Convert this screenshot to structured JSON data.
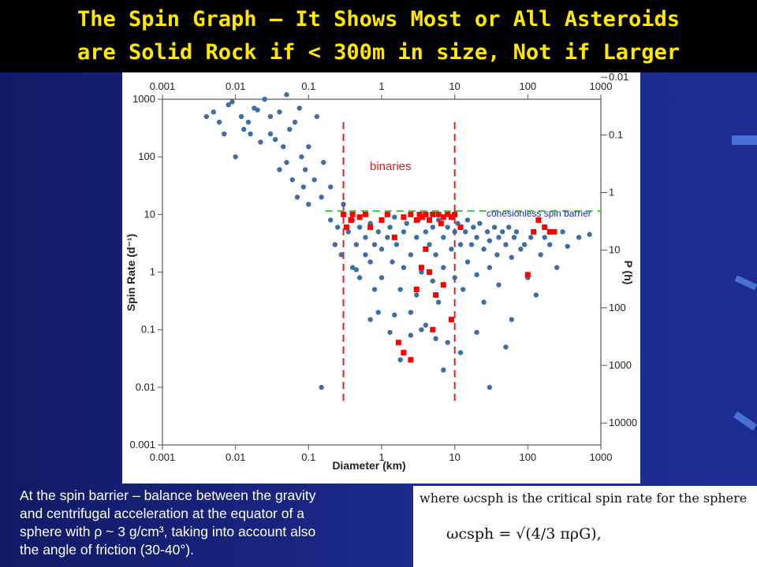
{
  "slide": {
    "title": "The Spin Graph – It Shows Most or All Asteroids\nare Solid Rock if < 300m in size, Not if Larger",
    "text_lines": [
      "At the spin barrier – balance between the gravity",
      "and centrifugal acceleration at the equator of a",
      "sphere with ρ ~ 3 g/cm³, taking into account also",
      "the angle of friction (30-40°)."
    ],
    "formula": {
      "line1": "where ωcsph is the critical spin rate for the sphere",
      "equation": "ωcsph = √(4/3 πρG),"
    },
    "colors": {
      "background": "#1b2a8c",
      "title": "#ffe800",
      "points": "#3d6fa3",
      "binaries": "#ff0000",
      "barrier_line": "#33cc33",
      "size_markers": "#dd2222"
    }
  },
  "chart_data": {
    "type": "scatter",
    "xlabel": "Diameter (km)",
    "ylabel": "Spin Rate (d⁻¹)",
    "ylabel_right": "P (h)",
    "xscale": "log",
    "yscale": "log",
    "xlim": [
      0.001,
      1000
    ],
    "ylim": [
      0.001,
      1000
    ],
    "x_ticks": [
      "0.001",
      "0.01",
      "0.1",
      "1",
      "10",
      "100",
      "1000"
    ],
    "y_ticks": [
      "0.001",
      "0.01",
      "0.1",
      "1",
      "10",
      "100",
      "1000"
    ],
    "right_ticks": [
      "0.01",
      "0.1",
      "1",
      "10",
      "100",
      "1000",
      "10000"
    ],
    "annotations": {
      "binaries_label": "binaries",
      "spin_barrier_label": "cohesionless spin barrier",
      "spin_barrier_rate": 11.5,
      "vertical_markers_km": [
        0.3,
        10
      ]
    },
    "series": [
      {
        "name": "asteroids",
        "points": [
          [
            0.004,
            500
          ],
          [
            0.005,
            600
          ],
          [
            0.006,
            400
          ],
          [
            0.007,
            250
          ],
          [
            0.008,
            800
          ],
          [
            0.009,
            900
          ],
          [
            0.01,
            100
          ],
          [
            0.012,
            500
          ],
          [
            0.013,
            300
          ],
          [
            0.015,
            400
          ],
          [
            0.016,
            250
          ],
          [
            0.018,
            700
          ],
          [
            0.02,
            650
          ],
          [
            0.022,
            180
          ],
          [
            0.025,
            1000
          ],
          [
            0.025,
            1000
          ],
          [
            0.03,
            250
          ],
          [
            0.03,
            500
          ],
          [
            0.035,
            200
          ],
          [
            0.04,
            600
          ],
          [
            0.04,
            60
          ],
          [
            0.045,
            150
          ],
          [
            0.05,
            1200
          ],
          [
            0.05,
            80
          ],
          [
            0.055,
            300
          ],
          [
            0.06,
            40
          ],
          [
            0.065,
            400
          ],
          [
            0.07,
            20
          ],
          [
            0.075,
            700
          ],
          [
            0.08,
            100
          ],
          [
            0.085,
            30
          ],
          [
            0.09,
            60
          ],
          [
            0.1,
            15
          ],
          [
            0.1,
            150
          ],
          [
            0.12,
            40
          ],
          [
            0.13,
            500
          ],
          [
            0.15,
            20
          ],
          [
            0.16,
            80
          ],
          [
            0.2,
            8
          ],
          [
            0.2,
            30
          ],
          [
            0.23,
            3
          ],
          [
            0.25,
            6
          ],
          [
            0.28,
            2
          ],
          [
            0.3,
            15
          ],
          [
            0.35,
            5
          ],
          [
            0.4,
            8
          ],
          [
            0.4,
            1.2
          ],
          [
            0.45,
            3
          ],
          [
            0.5,
            6
          ],
          [
            0.5,
            0.8
          ],
          [
            0.6,
            4
          ],
          [
            0.6,
            2
          ],
          [
            0.7,
            7
          ],
          [
            0.7,
            1.5
          ],
          [
            0.8,
            3
          ],
          [
            0.8,
            0.5
          ],
          [
            0.9,
            5
          ],
          [
            1,
            8
          ],
          [
            1,
            2.5
          ],
          [
            1,
            0.8
          ],
          [
            1.2,
            4
          ],
          [
            1.3,
            6
          ],
          [
            1.4,
            1.5
          ],
          [
            1.5,
            9
          ],
          [
            1.6,
            3
          ],
          [
            1.8,
            0.5
          ],
          [
            2,
            5
          ],
          [
            2,
            1.2
          ],
          [
            2.2,
            7
          ],
          [
            2.5,
            2
          ],
          [
            2.5,
            0.2
          ],
          [
            3,
            4
          ],
          [
            3,
            0.4
          ],
          [
            3.2,
            8
          ],
          [
            3.5,
            1
          ],
          [
            4,
            5
          ],
          [
            4,
            0.12
          ],
          [
            4.5,
            3
          ],
          [
            5,
            6
          ],
          [
            5,
            0.7
          ],
          [
            5.5,
            2
          ],
          [
            6,
            8
          ],
          [
            6,
            0.3
          ],
          [
            7,
            4
          ],
          [
            7,
            1.2
          ],
          [
            8,
            6
          ],
          [
            8,
            0.06
          ],
          [
            9,
            2.5
          ],
          [
            10,
            5
          ],
          [
            10,
            0.8
          ],
          [
            11,
            7
          ],
          [
            12,
            3
          ],
          [
            13,
            0.5
          ],
          [
            14,
            5
          ],
          [
            15,
            8
          ],
          [
            15,
            1.5
          ],
          [
            17,
            3
          ],
          [
            18,
            6
          ],
          [
            20,
            4
          ],
          [
            20,
            0.9
          ],
          [
            22,
            7
          ],
          [
            25,
            2.5
          ],
          [
            25,
            0.3
          ],
          [
            28,
            5
          ],
          [
            30,
            3.5
          ],
          [
            30,
            1.2
          ],
          [
            35,
            6
          ],
          [
            38,
            2
          ],
          [
            40,
            4
          ],
          [
            40,
            0.6
          ],
          [
            45,
            5
          ],
          [
            50,
            3
          ],
          [
            50,
            0.05
          ],
          [
            55,
            6
          ],
          [
            60,
            1.8
          ],
          [
            65,
            4
          ],
          [
            70,
            5
          ],
          [
            80,
            2.5
          ],
          [
            90,
            3
          ],
          [
            100,
            0.8
          ],
          [
            110,
            4
          ],
          [
            130,
            0.4
          ],
          [
            150,
            2
          ],
          [
            170,
            4
          ],
          [
            200,
            3
          ],
          [
            250,
            1.2
          ],
          [
            300,
            5
          ],
          [
            350,
            2.8
          ],
          [
            500,
            4
          ],
          [
            700,
            4.5
          ],
          [
            1.3,
            0.09
          ],
          [
            2.5,
            0.08
          ],
          [
            1.8,
            0.03
          ],
          [
            0.15,
            0.01
          ],
          [
            0.45,
            1.1
          ],
          [
            0.7,
            0.15
          ],
          [
            3.5,
            0.1
          ],
          [
            12,
            0.04
          ],
          [
            30,
            0.01
          ],
          [
            0.9,
            0.2
          ],
          [
            1.5,
            0.18
          ],
          [
            5.5,
            0.07
          ],
          [
            20,
            0.09
          ],
          [
            60,
            0.15
          ],
          [
            7,
            0.02
          ]
        ]
      },
      {
        "name": "binaries",
        "points": [
          [
            0.3,
            10
          ],
          [
            0.33,
            6
          ],
          [
            0.38,
            8
          ],
          [
            0.4,
            10
          ],
          [
            0.5,
            9
          ],
          [
            0.6,
            10
          ],
          [
            0.7,
            6
          ],
          [
            1,
            8
          ],
          [
            1.2,
            10
          ],
          [
            1.5,
            4
          ],
          [
            2,
            9
          ],
          [
            2.5,
            10
          ],
          [
            3,
            8
          ],
          [
            3.3,
            10
          ],
          [
            3.6,
            9
          ],
          [
            4,
            10
          ],
          [
            4.5,
            8
          ],
          [
            5,
            10
          ],
          [
            6,
            10
          ],
          [
            6.5,
            7
          ],
          [
            7,
            9
          ],
          [
            8,
            10
          ],
          [
            9,
            9
          ],
          [
            10,
            10
          ],
          [
            4,
            2.5
          ],
          [
            3.5,
            1.2
          ],
          [
            4.5,
            1
          ],
          [
            3,
            0.5
          ],
          [
            5.5,
            0.4
          ],
          [
            9,
            0.15
          ],
          [
            7,
            0.6
          ],
          [
            2,
            0.04
          ],
          [
            2.5,
            0.03
          ],
          [
            1.7,
            0.06
          ],
          [
            5,
            0.1
          ],
          [
            12,
            6
          ],
          [
            120,
            5
          ],
          [
            140,
            8
          ],
          [
            170,
            6
          ],
          [
            200,
            5
          ],
          [
            230,
            5
          ],
          [
            100,
            0.9
          ]
        ]
      }
    ]
  }
}
